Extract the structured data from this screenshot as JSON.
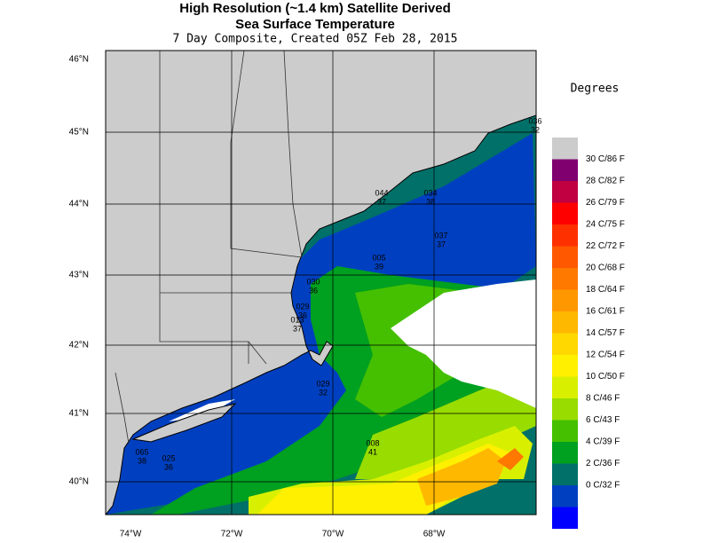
{
  "header": {
    "title": "High Resolution (~1.4 km) Satellite Derived",
    "title2": "Sea Surface Temperature",
    "subtitle": "7 Day Composite, Created 05Z Feb 28, 2015"
  },
  "legend": {
    "title": "Degrees",
    "entries": [
      "30 C/86 F",
      "28 C/82 F",
      "26 C/79 F",
      "24 C/75 F",
      "22 C/72 F",
      "20 C/68 F",
      "18 C/64 F",
      "16 C/61 F",
      "14 C/57 F",
      "12 C/54 F",
      "10 C/50 F",
      "8 C/46 F",
      "6 C/43 F",
      "4 C/39 F",
      "2 C/36 F",
      "0 C/32 F"
    ],
    "colors": [
      "#800070",
      "#c00040",
      "#ff0000",
      "#ff3000",
      "#ff5800",
      "#ff7800",
      "#ff9800",
      "#ffb800",
      "#ffd800",
      "#fff000",
      "#d8f000",
      "#98dc00",
      "#44c000",
      "#00a020",
      "#007068",
      "#0040c0",
      "#0000ff"
    ],
    "no_data_color": "#cccccc"
  },
  "map": {
    "lat_labels": [
      "46°N",
      "45°N",
      "44°N",
      "43°N",
      "42°N",
      "41°N",
      "40°N"
    ],
    "lon_labels": [
      "74°W",
      "72°W",
      "70°W",
      "68°W"
    ]
  },
  "stations": [
    {
      "id": "065",
      "temp": 38
    },
    {
      "id": "025",
      "temp": 36
    },
    {
      "id": "008",
      "temp": 41
    },
    {
      "id": "029",
      "temp": 32
    },
    {
      "id": "013",
      "temp": 37
    },
    {
      "id": "029",
      "temp": 36
    },
    {
      "id": "030",
      "temp": 36
    },
    {
      "id": "005",
      "temp": 39
    },
    {
      "id": "037",
      "temp": 37
    },
    {
      "id": "034",
      "temp": 38
    },
    {
      "id": "044",
      "temp": 37
    },
    {
      "id": "036",
      "temp": 32
    }
  ]
}
